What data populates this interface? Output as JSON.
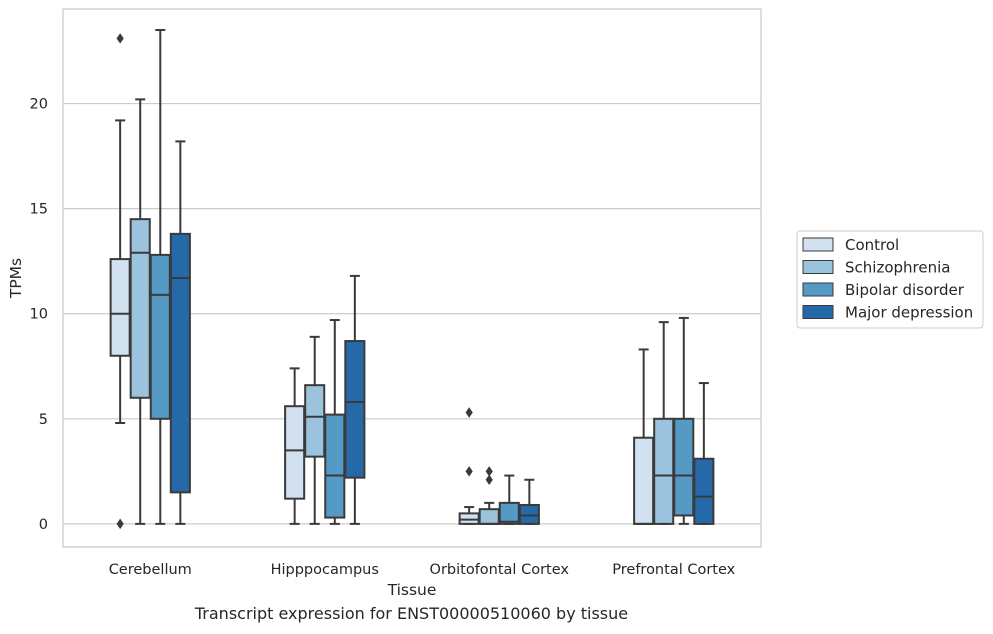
{
  "caption": "Transcript expression for ENST00000510060 by tissue",
  "chart_data": {
    "type": "box",
    "xlabel": "Tissue",
    "ylabel": "TPMs",
    "ylim": [
      -1.1,
      24.5
    ],
    "yticks": [
      0,
      5,
      10,
      15,
      20
    ],
    "grid": "horizontal",
    "legend_position": "right",
    "categories": [
      "Cerebellum",
      "Hipppocampus",
      "Orbitofontal Cortex",
      "Prefrontal Cortex"
    ],
    "series": [
      {
        "name": "Control",
        "color": "#d1e1ef",
        "boxes": [
          {
            "whislo": 4.8,
            "q1": 8.0,
            "med": 10.0,
            "q3": 12.6,
            "whishi": 19.2,
            "fliers": [
              23.1,
              0.0
            ]
          },
          {
            "whislo": 0.0,
            "q1": 1.2,
            "med": 3.5,
            "q3": 5.6,
            "whishi": 7.4,
            "fliers": []
          },
          {
            "whislo": 0.0,
            "q1": 0.0,
            "med": 0.2,
            "q3": 0.5,
            "whishi": 0.8,
            "fliers": [
              5.3,
              2.5
            ]
          },
          {
            "whislo": 0.0,
            "q1": 0.0,
            "med": 0.0,
            "q3": 4.1,
            "whishi": 8.3,
            "fliers": []
          }
        ]
      },
      {
        "name": "Schizophrenia",
        "color": "#9cc3de",
        "boxes": [
          {
            "whislo": 0.0,
            "q1": 6.0,
            "med": 12.9,
            "q3": 14.5,
            "whishi": 20.2,
            "fliers": []
          },
          {
            "whislo": 0.0,
            "q1": 3.2,
            "med": 5.1,
            "q3": 6.6,
            "whishi": 8.9,
            "fliers": []
          },
          {
            "whislo": 0.0,
            "q1": 0.0,
            "med": 0.0,
            "q3": 0.7,
            "whishi": 1.0,
            "fliers": [
              2.5,
              2.1
            ]
          },
          {
            "whislo": 0.0,
            "q1": 0.0,
            "med": 2.3,
            "q3": 5.0,
            "whishi": 9.6,
            "fliers": []
          }
        ]
      },
      {
        "name": "Bipolar disorder",
        "color": "#5599c5",
        "boxes": [
          {
            "whislo": 0.0,
            "q1": 5.0,
            "med": 10.9,
            "q3": 12.8,
            "whishi": 23.5,
            "fliers": []
          },
          {
            "whislo": 0.0,
            "q1": 0.3,
            "med": 2.3,
            "q3": 5.2,
            "whishi": 9.7,
            "fliers": []
          },
          {
            "whislo": 0.0,
            "q1": 0.0,
            "med": 0.1,
            "q3": 1.0,
            "whishi": 2.3,
            "fliers": []
          },
          {
            "whislo": 0.0,
            "q1": 0.4,
            "med": 2.3,
            "q3": 5.0,
            "whishi": 9.8,
            "fliers": []
          }
        ]
      },
      {
        "name": "Major depression",
        "color": "#2669a8",
        "boxes": [
          {
            "whislo": 0.0,
            "q1": 1.5,
            "med": 11.7,
            "q3": 13.8,
            "whishi": 18.2,
            "fliers": []
          },
          {
            "whislo": 0.0,
            "q1": 2.2,
            "med": 5.8,
            "q3": 8.7,
            "whishi": 11.8,
            "fliers": []
          },
          {
            "whislo": 0.0,
            "q1": 0.0,
            "med": 0.4,
            "q3": 0.9,
            "whishi": 2.1,
            "fliers": []
          },
          {
            "whislo": 0.0,
            "q1": 0.0,
            "med": 1.3,
            "q3": 3.1,
            "whishi": 6.7,
            "fliers": []
          }
        ]
      }
    ]
  }
}
